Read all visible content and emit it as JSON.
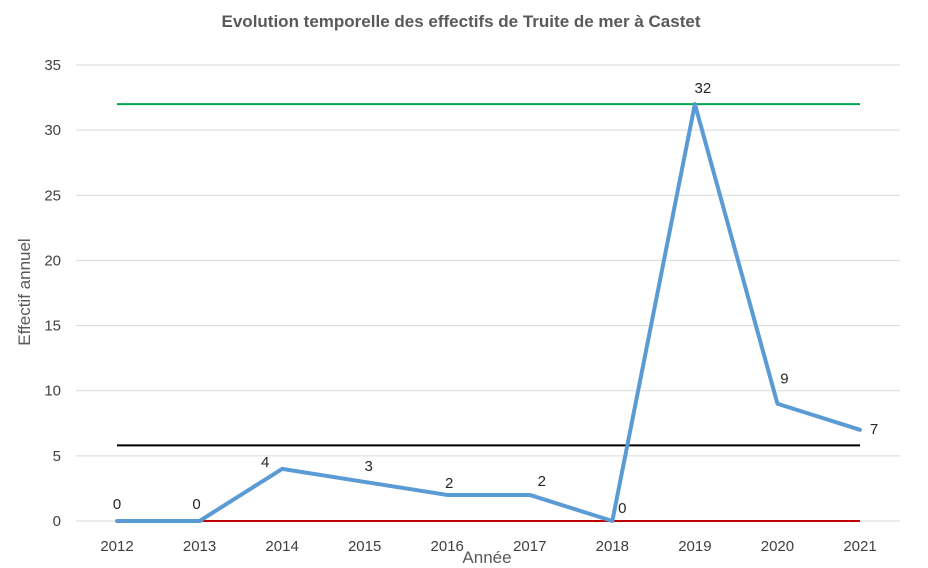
{
  "chart_data": {
    "type": "line",
    "title": "Evolution temporelle des effectifs de Truite de mer à Castet",
    "xlabel": "Année",
    "ylabel": "Effectif annuel",
    "categories": [
      "2012",
      "2013",
      "2014",
      "2015",
      "2016",
      "2017",
      "2018",
      "2019",
      "2020",
      "2021"
    ],
    "series": [
      {
        "values": [
          0,
          0,
          4,
          3,
          2,
          2,
          0,
          32,
          9,
          7
        ],
        "color": "#5b9bd5",
        "show_labels": true
      }
    ],
    "reference_lines": [
      {
        "value": 32,
        "color": "#00a651"
      },
      {
        "value": 5.8,
        "color": "#000000"
      },
      {
        "value": 0,
        "color": "#c00000"
      }
    ],
    "ylim": [
      0,
      35
    ],
    "yticks": [
      0,
      5,
      10,
      15,
      20,
      25,
      30,
      35
    ],
    "grid": true,
    "legend": "none"
  }
}
